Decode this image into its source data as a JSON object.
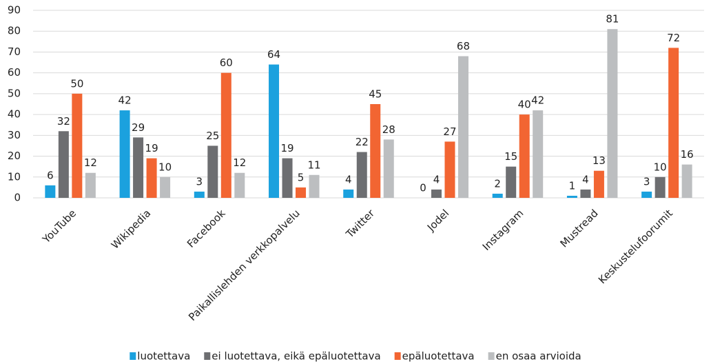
{
  "chart_data": {
    "type": "bar",
    "categories": [
      "YouTube",
      "Wikipedia",
      "Facebook",
      "Paikallislehden verkkopalvelu",
      "Twitter",
      "Jodel",
      "Instagram",
      "Mustread",
      "Keskustelufoorumit"
    ],
    "series": [
      {
        "name": "luotettava",
        "color": "#1ba1de",
        "values": [
          6,
          42,
          3,
          64,
          4,
          0,
          2,
          1,
          3
        ]
      },
      {
        "name": "ei luotettava, eikä epäluotettava",
        "color": "#6d6e71",
        "values": [
          32,
          29,
          25,
          19,
          22,
          4,
          15,
          4,
          10
        ]
      },
      {
        "name": "epäluotettava",
        "color": "#f26532",
        "values": [
          50,
          19,
          60,
          5,
          45,
          27,
          40,
          13,
          72
        ]
      },
      {
        "name": "en osaa arvioida",
        "color": "#bcbec0",
        "values": [
          12,
          10,
          12,
          11,
          28,
          68,
          42,
          81,
          16
        ]
      }
    ],
    "ylim": [
      0,
      90
    ],
    "yticks": [
      0,
      10,
      20,
      30,
      40,
      50,
      60,
      70,
      80,
      90
    ],
    "grid": true,
    "legend": "bottom"
  }
}
